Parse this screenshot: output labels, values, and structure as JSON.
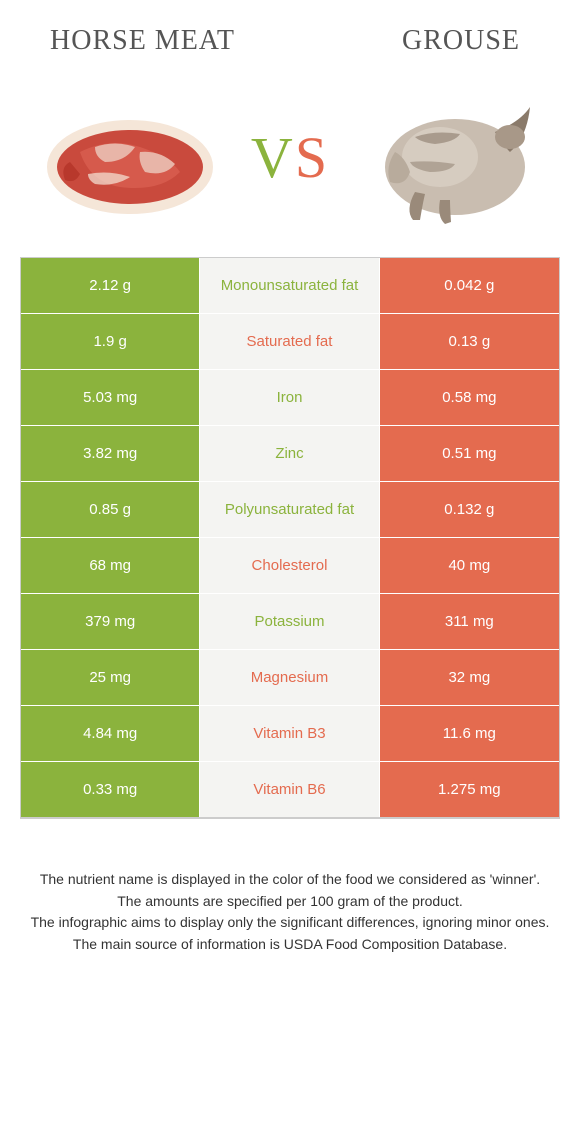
{
  "titles": {
    "left": "HORSE MEAT",
    "right": "GROUSE"
  },
  "vs": {
    "v": "V",
    "s": "S"
  },
  "colors": {
    "left": "#8bb33d",
    "right": "#e46b4f",
    "mid_bg": "#f4f4f2",
    "border": "#cccccc"
  },
  "rows": [
    {
      "left": "2.12 g",
      "label": "Monounsaturated fat",
      "right": "0.042 g",
      "winner": "left"
    },
    {
      "left": "1.9 g",
      "label": "Saturated fat",
      "right": "0.13 g",
      "winner": "right"
    },
    {
      "left": "5.03 mg",
      "label": "Iron",
      "right": "0.58 mg",
      "winner": "left"
    },
    {
      "left": "3.82 mg",
      "label": "Zinc",
      "right": "0.51 mg",
      "winner": "left"
    },
    {
      "left": "0.85 g",
      "label": "Polyunsaturated fat",
      "right": "0.132 g",
      "winner": "left"
    },
    {
      "left": "68 mg",
      "label": "Cholesterol",
      "right": "40 mg",
      "winner": "right"
    },
    {
      "left": "379 mg",
      "label": "Potassium",
      "right": "311 mg",
      "winner": "left"
    },
    {
      "left": "25 mg",
      "label": "Magnesium",
      "right": "32 mg",
      "winner": "right"
    },
    {
      "left": "4.84 mg",
      "label": "Vitamin B3",
      "right": "11.6 mg",
      "winner": "right"
    },
    {
      "left": "0.33 mg",
      "label": "Vitamin B6",
      "right": "1.275 mg",
      "winner": "right"
    }
  ],
  "footnotes": [
    "The nutrient name is displayed in the color of the food we considered as 'winner'.",
    "The amounts are specified per 100 gram of the product.",
    "The infographic aims to display only the significant differences, ignoring minor ones.",
    "The main source of information is USDA Food Composition Database."
  ]
}
